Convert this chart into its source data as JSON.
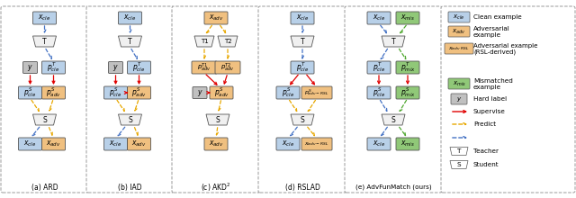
{
  "bg_color": "#ffffff",
  "box_blue": "#b8d0e8",
  "box_orange": "#f0c080",
  "box_gray": "#c0c0c0",
  "box_green": "#90c878",
  "box_white": "#f0f0f0",
  "red_arr": "#e00000",
  "blue_arr": "#4472c4",
  "yel_arr": "#e8a800",
  "grn_arr": "#50a830",
  "panel_edge": "#888888",
  "panels": [
    "(a) ARD",
    "(b) IAD",
    "(c) AKD$^2$",
    "(d) RSLAD",
    "(e) AdvFunMatch (ours)"
  ]
}
